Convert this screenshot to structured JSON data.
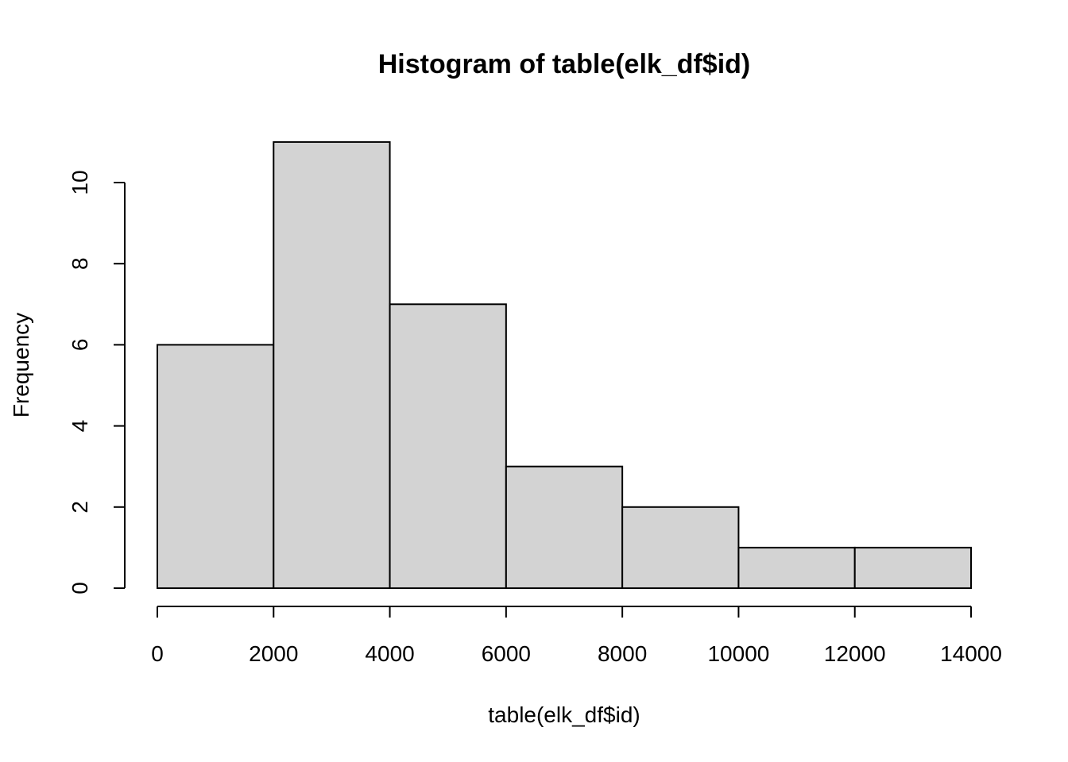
{
  "chart_data": {
    "type": "bar",
    "subtype": "histogram",
    "title": "Histogram of table(elk_df$id)",
    "xlabel": "table(elk_df$id)",
    "ylabel": "Frequency",
    "bins": [
      {
        "start": 0,
        "end": 2000,
        "count": 6
      },
      {
        "start": 2000,
        "end": 4000,
        "count": 11
      },
      {
        "start": 4000,
        "end": 6000,
        "count": 7
      },
      {
        "start": 6000,
        "end": 8000,
        "count": 3
      },
      {
        "start": 8000,
        "end": 10000,
        "count": 2
      },
      {
        "start": 10000,
        "end": 12000,
        "count": 1
      },
      {
        "start": 12000,
        "end": 14000,
        "count": 1
      }
    ],
    "xlim": [
      0,
      14000
    ],
    "ylim": [
      0,
      11
    ],
    "x_ticks": [
      0,
      2000,
      4000,
      6000,
      8000,
      10000,
      12000,
      14000
    ],
    "y_ticks": [
      0,
      2,
      4,
      6,
      8,
      10
    ],
    "bar_color": "#d3d3d3",
    "border_color": "#000000",
    "grid": false,
    "legend": "none"
  }
}
